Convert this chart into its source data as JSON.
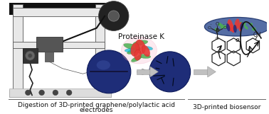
{
  "bg_color": "#ffffff",
  "left_label_line1": "Digestion of 3D-printed graphene/polylactic acid",
  "left_label_line2": "electrodes",
  "right_label": "3D-printed biosensor",
  "proteinase_label": "Proteinase K",
  "label_fontsize": 6.5,
  "annotation_fontsize": 7.5,
  "text_color": "#111111",
  "printer_frame_color": "#e8e8e8",
  "printer_frame_edge": "#555555",
  "printer_dark": "#222222",
  "electrode_dark": "#1a2a6c",
  "electrode_mid": "#2a3a8c",
  "arrow_gray": "#b0b0b0",
  "chem_color": "#222222",
  "divider_color": "#666666"
}
